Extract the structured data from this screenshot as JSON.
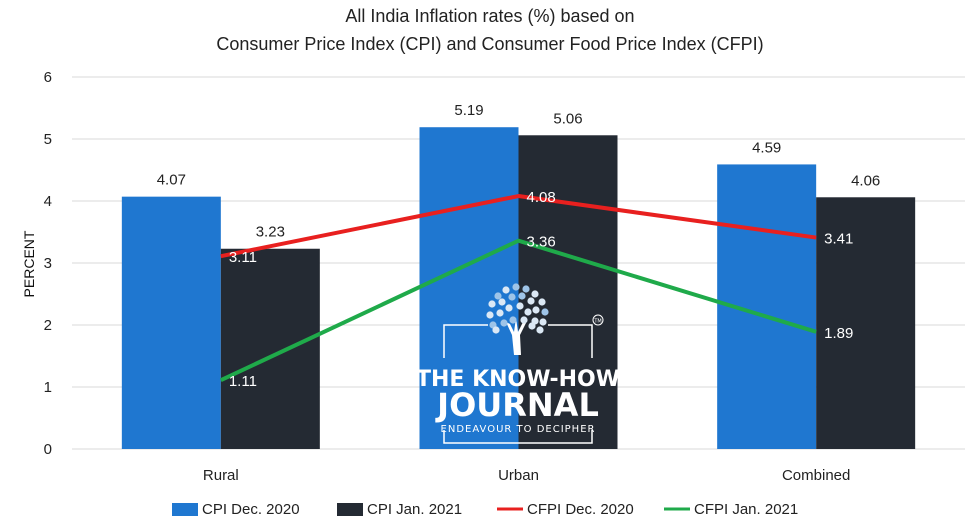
{
  "chart_data": {
    "type": "bar",
    "title_lines": [
      "All India Inflation rates (%) based on",
      "Consumer Price Index (CPI) and Consumer Food Price Index (CFPI)"
    ],
    "xlabel": "",
    "ylabel": "PERCENT",
    "ylim": [
      0,
      6
    ],
    "yticks": [
      0,
      1,
      2,
      3,
      4,
      5,
      6
    ],
    "grid": true,
    "legend_position": "bottom",
    "categories": [
      "Rural",
      "Urban",
      "Combined"
    ],
    "bar_series": [
      {
        "name": "CPI Dec. 2020",
        "values": [
          4.07,
          5.19,
          4.59
        ],
        "labels": [
          "4.07",
          "5.19",
          "4.59"
        ],
        "color": "#1f77d0"
      },
      {
        "name": "CPI Jan. 2021",
        "values": [
          3.23,
          5.06,
          4.06
        ],
        "labels": [
          "3.23",
          "5.06",
          "4.06"
        ],
        "color": "#242a33"
      }
    ],
    "line_series": [
      {
        "name": "CFPI Dec. 2020",
        "values": [
          3.11,
          4.08,
          3.41
        ],
        "labels": [
          "3.11",
          "4.08",
          "3.41"
        ],
        "color": "#e8201f"
      },
      {
        "name": "CFPI Jan. 2021",
        "values": [
          1.11,
          3.36,
          1.89
        ],
        "labels": [
          "1.11",
          "3.36",
          "1.89"
        ],
        "color": "#1faa4a"
      }
    ]
  },
  "watermark": {
    "title_line1": "THE KNOW-HOW",
    "title_line2": "JOURNAL",
    "tagline": "ENDEAVOUR TO DECIPHER",
    "trademark": "TM",
    "icon": "tree-icon"
  }
}
